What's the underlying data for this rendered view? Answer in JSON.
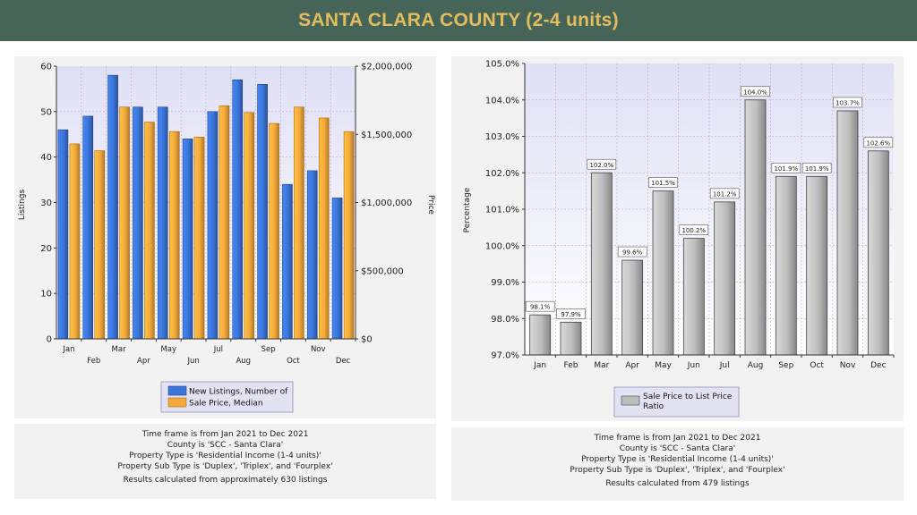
{
  "header": {
    "title": "SANTA CLARA COUNTY (2-4 units)"
  },
  "chart_data": [
    {
      "type": "bar",
      "categories": [
        "Jan",
        "Feb",
        "Mar",
        "Apr",
        "May",
        "Jun",
        "Jul",
        "Aug",
        "Sep",
        "Oct",
        "Nov",
        "Dec"
      ],
      "series": [
        {
          "name": "New Listings, Number of",
          "axis": "left",
          "color": "#3b75d8",
          "values": [
            46,
            49,
            58,
            51,
            51,
            44,
            50,
            57,
            56,
            34,
            37,
            31
          ]
        },
        {
          "name": "Sale Price, Median",
          "axis": "right",
          "color": "#f4a93a",
          "values": [
            1430000,
            1380000,
            1700000,
            1590000,
            1520000,
            1480000,
            1710000,
            1660000,
            1580000,
            1700000,
            1620000,
            1520000
          ]
        }
      ],
      "ylabel": "Listings",
      "ylim": [
        0,
        60
      ],
      "yticks": [
        "0",
        "10",
        "20",
        "30",
        "40",
        "50",
        "60"
      ],
      "y2label": "Price",
      "y2lim": [
        0,
        2000000
      ],
      "y2ticks": [
        "$0",
        "$500,000",
        "$1,000,000",
        "$1,500,000",
        "$2,000,000"
      ],
      "legend": "bottom",
      "grid": true
    },
    {
      "type": "bar",
      "categories": [
        "Jan",
        "Feb",
        "Mar",
        "Apr",
        "May",
        "Jun",
        "Jul",
        "Aug",
        "Sep",
        "Oct",
        "Nov",
        "Dec"
      ],
      "series": [
        {
          "name": "Sale Price to List Price Ratio",
          "color": "#bdbdbd",
          "values": [
            98.1,
            97.9,
            102.0,
            99.6,
            101.5,
            100.2,
            101.2,
            104.0,
            101.9,
            101.9,
            103.7,
            102.6
          ]
        }
      ],
      "data_labels": [
        "98.1%",
        "97.9%",
        "102.0%",
        "99.6%",
        "101.5%",
        "100.2%",
        "101.2%",
        "104.0%",
        "101.9%",
        "101.9%",
        "103.7%",
        "102.6%"
      ],
      "ylabel": "Percentage",
      "ylim": [
        97,
        105
      ],
      "yticks": [
        "97.0%",
        "98.0%",
        "99.0%",
        "100.0%",
        "101.0%",
        "102.0%",
        "103.0%",
        "104.0%",
        "105.0%"
      ],
      "legend": "bottom",
      "grid": true
    }
  ],
  "captions": [
    {
      "lines": [
        "Time frame is from Jan 2021 to Dec 2021",
        "County is 'SCC - Santa Clara'",
        "Property Type is 'Residential Income (1-4 units)'",
        "Property Sub Type is 'Duplex', 'Triplex', and 'Fourplex'"
      ],
      "results": "Results calculated from approximately 630 listings"
    },
    {
      "lines": [
        "Time frame is from Jan 2021 to Dec 2021",
        "County is 'SCC - Santa Clara'",
        "Property Type is 'Residential Income (1-4 units)'",
        "Property Sub Type is 'Duplex', 'Triplex', and 'Fourplex'"
      ],
      "results": "Results calculated from 479 listings"
    }
  ]
}
